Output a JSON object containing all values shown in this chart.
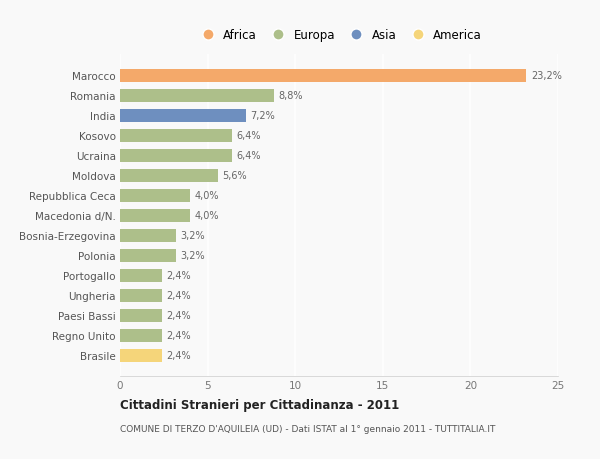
{
  "countries": [
    "Marocco",
    "Romania",
    "India",
    "Kosovo",
    "Ucraina",
    "Moldova",
    "Repubblica Ceca",
    "Macedonia d/N.",
    "Bosnia-Erzegovina",
    "Polonia",
    "Portogallo",
    "Ungheria",
    "Paesi Bassi",
    "Regno Unito",
    "Brasile"
  ],
  "values": [
    23.2,
    8.8,
    7.2,
    6.4,
    6.4,
    5.6,
    4.0,
    4.0,
    3.2,
    3.2,
    2.4,
    2.4,
    2.4,
    2.4,
    2.4
  ],
  "labels": [
    "23,2%",
    "8,8%",
    "7,2%",
    "6,4%",
    "6,4%",
    "5,6%",
    "4,0%",
    "4,0%",
    "3,2%",
    "3,2%",
    "2,4%",
    "2,4%",
    "2,4%",
    "2,4%",
    "2,4%"
  ],
  "continents": [
    "Africa",
    "Europa",
    "Asia",
    "Europa",
    "Europa",
    "Europa",
    "Europa",
    "Europa",
    "Europa",
    "Europa",
    "Europa",
    "Europa",
    "Europa",
    "Europa",
    "America"
  ],
  "colors": {
    "Africa": "#F4A96A",
    "Europa": "#ADBF8A",
    "Asia": "#6E8FBF",
    "America": "#F5D57A"
  },
  "legend_items": [
    "Africa",
    "Europa",
    "Asia",
    "America"
  ],
  "title": "Cittadini Stranieri per Cittadinanza - 2011",
  "subtitle": "COMUNE DI TERZO D'AQUILEIA (UD) - Dati ISTAT al 1° gennaio 2011 - TUTTITALIA.IT",
  "xlim": [
    0,
    25
  ],
  "xticks": [
    0,
    5,
    10,
    15,
    20,
    25
  ],
  "background_color": "#f9f9f9",
  "grid_color": "#ffffff",
  "bar_height": 0.65
}
